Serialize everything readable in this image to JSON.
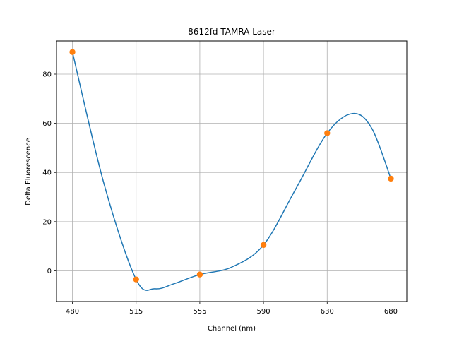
{
  "chart_data": {
    "type": "line",
    "title": "8612fd TAMRA Laser",
    "xlabel": "Channel (nm)",
    "ylabel": "Delta Fluorescence",
    "categories": [
      "480",
      "515",
      "555",
      "590",
      "630",
      "680"
    ],
    "points": [
      {
        "x": "480",
        "y": 89.0
      },
      {
        "x": "515",
        "y": -3.5
      },
      {
        "x": "555",
        "y": -1.5
      },
      {
        "x": "590",
        "y": 10.5
      },
      {
        "x": "630",
        "y": 56.0
      },
      {
        "x": "680",
        "y": 37.5
      }
    ],
    "smooth_curve": {
      "color": "#1f77b4",
      "description_free": true,
      "values_at_positions": [
        {
          "pos": 0.0,
          "y": 89.0
        },
        {
          "pos": 0.5,
          "y": 35.0
        },
        {
          "pos": 1.0,
          "y": -3.5
        },
        {
          "pos": 1.3,
          "y": -7.3
        },
        {
          "pos": 1.6,
          "y": -5.2
        },
        {
          "pos": 2.0,
          "y": -1.5
        },
        {
          "pos": 2.5,
          "y": 1.5
        },
        {
          "pos": 3.0,
          "y": 10.5
        },
        {
          "pos": 3.5,
          "y": 33.0
        },
        {
          "pos": 4.0,
          "y": 56.0
        },
        {
          "pos": 4.4,
          "y": 64.0
        },
        {
          "pos": 4.7,
          "y": 58.0
        },
        {
          "pos": 5.0,
          "y": 37.5
        }
      ]
    },
    "marker_color": "#ff7f0e",
    "ylim": [
      -12.5,
      93.5
    ],
    "yticks": [
      0,
      20,
      40,
      60,
      80
    ],
    "grid": true
  }
}
